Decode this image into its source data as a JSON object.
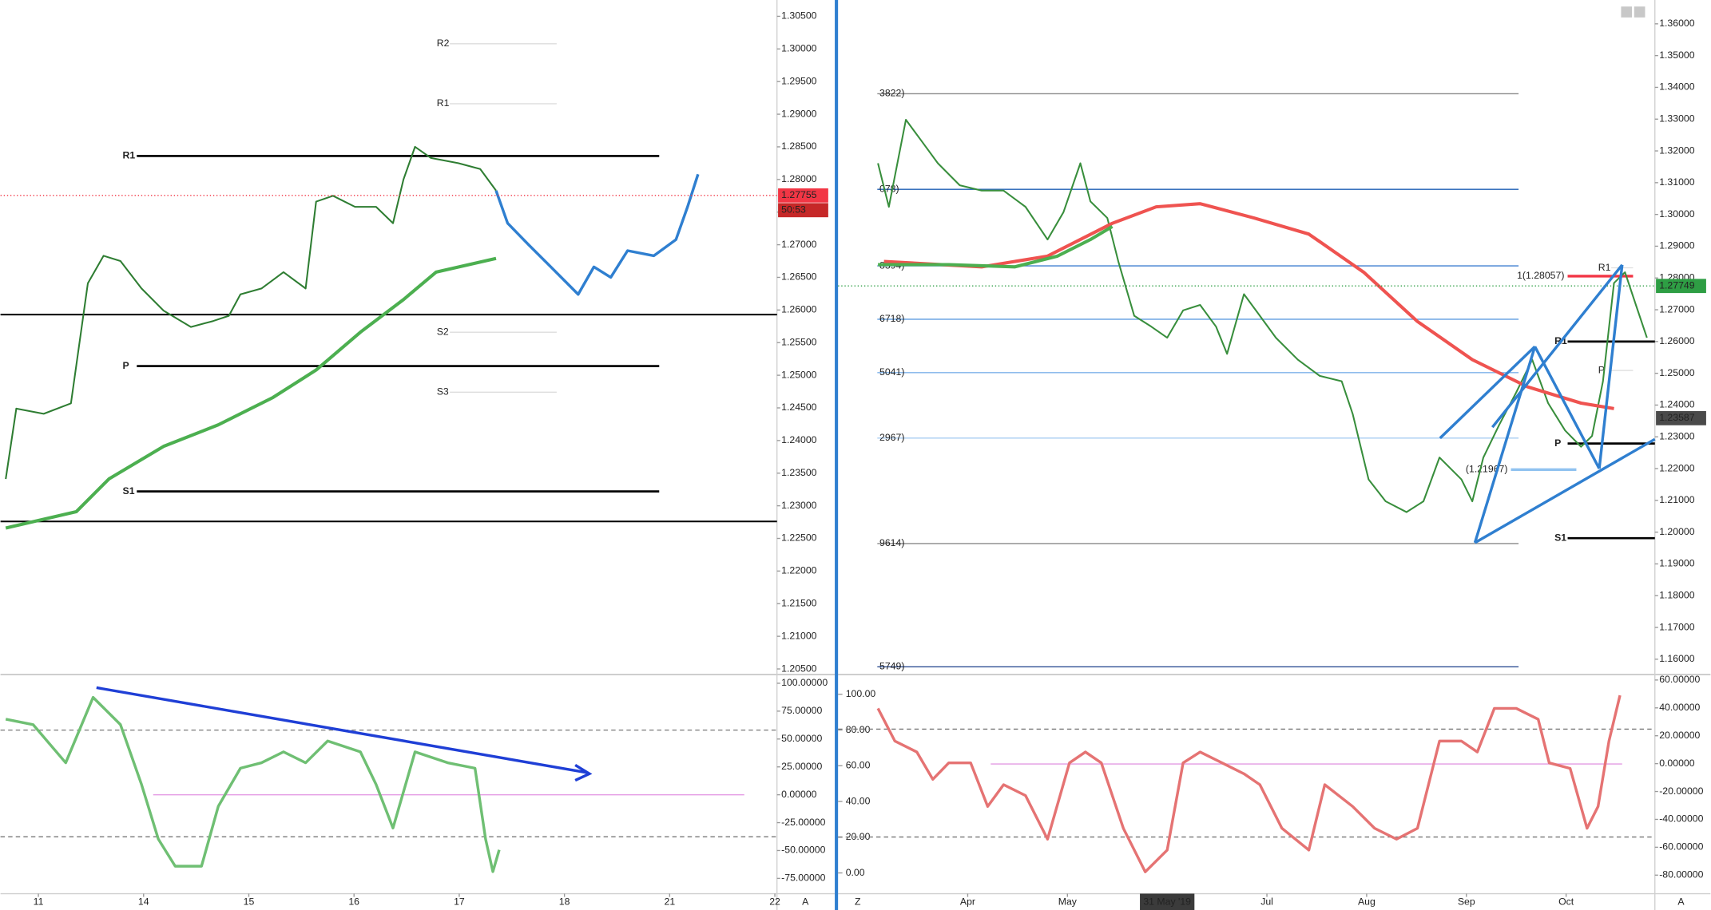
{
  "chart_data": [
    {
      "type": "line",
      "xlim": [
        -0.36,
        7.02
      ],
      "xticks": [
        {
          "value": 0,
          "label": "11"
        },
        {
          "value": 1,
          "label": "14"
        },
        {
          "value": 2,
          "label": "15"
        },
        {
          "value": 3,
          "label": "16"
        },
        {
          "value": 4,
          "label": "17"
        },
        {
          "value": 5,
          "label": "18"
        },
        {
          "value": 6,
          "label": "21"
        },
        {
          "value": 7,
          "label": "22"
        }
      ],
      "ylim": [
        1.2043,
        1.3075
      ],
      "yticks": [
        {
          "value": 1.205,
          "label": "1.20500"
        },
        {
          "value": 1.21,
          "label": "1.21000"
        },
        {
          "value": 1.215,
          "label": "1.21500"
        },
        {
          "value": 1.22,
          "label": "1.22000"
        },
        {
          "value": 1.225,
          "label": "1.22500"
        },
        {
          "value": 1.23,
          "label": "1.23000"
        },
        {
          "value": 1.235,
          "label": "1.23500"
        },
        {
          "value": 1.24,
          "label": "1.24000"
        },
        {
          "value": 1.245,
          "label": "1.24500"
        },
        {
          "value": 1.25,
          "label": "1.25000"
        },
        {
          "value": 1.255,
          "label": "1.25500"
        },
        {
          "value": 1.26,
          "label": "1.26000"
        },
        {
          "value": 1.265,
          "label": "1.26500"
        },
        {
          "value": 1.27,
          "label": "1.27000"
        },
        {
          "value": 1.275,
          "label": "1.27500"
        },
        {
          "value": 1.28,
          "label": "1.28000"
        },
        {
          "value": 1.285,
          "label": "1.28500"
        },
        {
          "value": 1.29,
          "label": "1.29000"
        },
        {
          "value": 1.295,
          "label": "1.29500"
        },
        {
          "value": 1.3,
          "label": "1.30000"
        },
        {
          "value": 1.305,
          "label": "1.30500"
        }
      ],
      "series": [
        {
          "color": "#2e7d32",
          "width": 1.5,
          "x": [
            -0.31,
            -0.21,
            0.05,
            0.31,
            0.47,
            0.62,
            0.78,
            0.98,
            1.19,
            1.45,
            1.66,
            1.81,
            1.92,
            2.12,
            2.33,
            2.54,
            2.64,
            2.8,
            3.01,
            3.21,
            3.37,
            3.47,
            3.58,
            3.73,
            3.99,
            4.2,
            4.35
          ],
          "values": [
            1.2341,
            1.2449,
            1.2441,
            1.2457,
            1.2641,
            1.2683,
            1.2675,
            1.2633,
            1.2599,
            1.2574,
            1.2583,
            1.2591,
            1.2624,
            1.2633,
            1.2658,
            1.2633,
            1.2766,
            1.2775,
            1.2758,
            1.2758,
            1.2733,
            1.28,
            1.285,
            1.2833,
            1.2825,
            1.2816,
            1.2783
          ]
        },
        {
          "color": "#2f7fd0",
          "width": 2.5,
          "x": [
            4.35,
            4.46,
            4.66,
            4.87,
            5.13,
            5.28,
            5.44,
            5.6,
            5.85,
            6.06,
            6.17,
            6.27
          ],
          "values": [
            1.2783,
            1.2733,
            1.27,
            1.2666,
            1.2624,
            1.2666,
            1.265,
            1.2691,
            1.2683,
            1.2708,
            1.2758,
            1.2808
          ]
        },
        {
          "color": "#4caf50",
          "width": 3,
          "x": [
            -0.31,
            0.36,
            0.67,
            1.19,
            1.71,
            2.23,
            2.64,
            3.06,
            3.47,
            3.78,
            4.35
          ],
          "values": [
            1.2266,
            1.2291,
            1.2341,
            1.2391,
            1.2424,
            1.2466,
            1.2508,
            1.2566,
            1.2616,
            1.2658,
            1.2679
          ]
        }
      ],
      "levels": [
        {
          "value": 1.2836,
          "label": "R1"
        },
        {
          "value": 1.2514,
          "label": "P"
        },
        {
          "value": 1.2322,
          "label": "S1"
        },
        {
          "value": 1.2593
        },
        {
          "value": 1.2276
        }
      ],
      "faint_levels": [
        {
          "value": 1.3008,
          "label": "R2"
        },
        {
          "value": 1.2916,
          "label": "R1"
        },
        {
          "value": 1.2566,
          "label": "S2"
        },
        {
          "value": 1.2474,
          "label": "S3"
        }
      ],
      "price_labels": [
        {
          "value": 1.27755,
          "label": "1.27755",
          "color": "#f23645"
        }
      ],
      "countdown": "50:53"
    },
    {
      "type": "line",
      "xlim": [
        -0.36,
        7.02
      ],
      "ylim": [
        -88.7,
        106.8
      ],
      "yticks": [
        {
          "value": 100,
          "label": "100.00000"
        },
        {
          "value": 75,
          "label": "75.00000"
        },
        {
          "value": 50,
          "label": "50.00000"
        },
        {
          "value": 25,
          "label": "25.00000"
        },
        {
          "value": 0,
          "label": "0.00000"
        },
        {
          "value": -25,
          "label": "-25.00000"
        },
        {
          "value": -50,
          "label": "-50.00000"
        },
        {
          "value": -75,
          "label": "-75.00000"
        }
      ],
      "series": [
        {
          "color": "#6fbf73",
          "width": 2.5,
          "x": [
            -0.31,
            -0.05,
            0.26,
            0.52,
            0.78,
            0.98,
            1.14,
            1.3,
            1.55,
            1.71,
            1.92,
            2.12,
            2.33,
            2.54,
            2.75,
            3.06,
            3.21,
            3.37,
            3.58,
            3.89,
            4.15,
            4.25,
            4.32,
            4.38
          ],
          "values": [
            67.8,
            62.9,
            28.7,
            87.3,
            62.9,
            9.2,
            -39.7,
            -64.1,
            -64.1,
            -10.4,
            23.8,
            28.7,
            38.5,
            28.7,
            48.2,
            38.5,
            9.2,
            -29.9,
            38.5,
            28.7,
            23.8,
            -39.7,
            -69,
            -49.4
          ]
        }
      ],
      "dashed_levels": [
        58,
        -37.7
      ],
      "mid_level": 0
    },
    {
      "type": "line",
      "xlim": [
        -1.3,
        6.89
      ],
      "xticks": [
        {
          "value": 0,
          "label": "Apr"
        },
        {
          "value": 1,
          "label": "May"
        },
        {
          "value": 3,
          "label": "Jul"
        },
        {
          "value": 4,
          "label": "Aug"
        },
        {
          "value": 5,
          "label": "Sep"
        },
        {
          "value": 6,
          "label": "Oct"
        }
      ],
      "crosshair_x": {
        "value": 2,
        "label": "31 May '19"
      },
      "ylim": [
        1.1555,
        1.3675
      ],
      "yticks": [
        {
          "value": 1.16,
          "label": "1.16000"
        },
        {
          "value": 1.17,
          "label": "1.17000"
        },
        {
          "value": 1.18,
          "label": "1.18000"
        },
        {
          "value": 1.19,
          "label": "1.19000"
        },
        {
          "value": 1.2,
          "label": "1.20000"
        },
        {
          "value": 1.21,
          "label": "1.21000"
        },
        {
          "value": 1.22,
          "label": "1.22000"
        },
        {
          "value": 1.23,
          "label": "1.23000"
        },
        {
          "value": 1.24,
          "label": "1.24000"
        },
        {
          "value": 1.25,
          "label": "1.25000"
        },
        {
          "value": 1.26,
          "label": "1.26000"
        },
        {
          "value": 1.27,
          "label": "1.27000"
        },
        {
          "value": 1.28,
          "label": "1.28000"
        },
        {
          "value": 1.29,
          "label": "1.29000"
        },
        {
          "value": 1.3,
          "label": "1.30000"
        },
        {
          "value": 1.31,
          "label": "1.31000"
        },
        {
          "value": 1.32,
          "label": "1.32000"
        },
        {
          "value": 1.33,
          "label": "1.33000"
        },
        {
          "value": 1.34,
          "label": "1.34000"
        },
        {
          "value": 1.35,
          "label": "1.35000"
        },
        {
          "value": 1.36,
          "label": "1.36000"
        }
      ],
      "series": [
        {
          "color": "#388e3c",
          "width": 1.5,
          "x": [
            -0.9,
            -0.79,
            -0.62,
            -0.46,
            -0.3,
            -0.08,
            0.14,
            0.36,
            0.58,
            0.8,
            0.96,
            1.13,
            1.23,
            1.4,
            1.51,
            1.67,
            1.84,
            2,
            2.16,
            2.33,
            2.49,
            2.6,
            2.77,
            2.93,
            3.09,
            3.31,
            3.53,
            3.75,
            3.86,
            4.02,
            4.19,
            4.4,
            4.57,
            4.73,
            4.95,
            5.06,
            5.17,
            5.33,
            5.5,
            5.66,
            5.82,
            5.99,
            6.15,
            6.26,
            6.37,
            6.48,
            6.59,
            6.7,
            6.81
          ],
          "values": [
            1.3161,
            1.3024,
            1.3298,
            1.323,
            1.3161,
            1.3092,
            1.3075,
            1.3075,
            1.3024,
            1.2921,
            1.3007,
            1.3161,
            1.3041,
            1.2989,
            1.2852,
            1.2681,
            1.2647,
            1.2612,
            1.2698,
            1.2715,
            1.2647,
            1.2561,
            1.2749,
            1.2681,
            1.2612,
            1.2543,
            1.2492,
            1.2475,
            1.2372,
            1.2166,
            1.2097,
            1.2063,
            1.2097,
            1.2235,
            1.2166,
            1.2097,
            1.2235,
            1.2338,
            1.244,
            1.2543,
            1.2406,
            1.232,
            1.2269,
            1.2303,
            1.2475,
            1.2784,
            1.2818,
            1.2715,
            1.2612
          ]
        },
        {
          "color": "#ef5350",
          "width": 3,
          "x": [
            -0.84,
            0.14,
            0.8,
            1.45,
            1.89,
            2.33,
            2.87,
            3.42,
            3.97,
            4.51,
            5.06,
            5.61,
            6.15,
            6.48
          ],
          "values": [
            1.2852,
            1.2835,
            1.2869,
            1.2972,
            1.3024,
            1.3034,
            1.2989,
            1.2938,
            1.2818,
            1.2663,
            1.2543,
            1.2458,
            1.2406,
            1.2389
          ]
        },
        {
          "color": "#4caf50",
          "width": 3,
          "x": [
            -0.9,
            -0.19,
            0.47,
            0.9,
            1.23,
            1.45
          ],
          "values": [
            1.2842,
            1.2842,
            1.2835,
            1.2869,
            1.2921,
            1.2962
          ]
        }
      ],
      "fib_levels": [
        {
          "value": 1.338,
          "label": "3822)",
          "color": "#8a8a8a"
        },
        {
          "value": 1.3079,
          "label": "078)",
          "color": "#1e5fb4"
        },
        {
          "value": 1.2838,
          "label": "8394)",
          "color": "#3d7fd0"
        },
        {
          "value": 1.267,
          "label": "6718)",
          "color": "#5a9be0"
        },
        {
          "value": 1.2502,
          "label": "5041)",
          "color": "#7fb3ea"
        },
        {
          "value": 1.2296,
          "label": "2967)",
          "color": "#a8cdf2"
        },
        {
          "value": 1.1964,
          "label": "9614)",
          "color": "#8a8a8a"
        },
        {
          "value": 1.1576,
          "label": "5749)",
          "color": "#1a3f8a"
        }
      ],
      "marked_levels": [
        {
          "value": 1.28057,
          "label": "1(1.28057)",
          "color": "#f23645"
        },
        {
          "value": 1.21967,
          "label": "(1.21967)",
          "color": "#90c2f0"
        }
      ],
      "pivots": [
        {
          "value": 1.26,
          "label": "R1"
        },
        {
          "value": 1.2279,
          "label": "P"
        },
        {
          "value": 1.1981,
          "label": "S1"
        }
      ],
      "faint_pivots": [
        {
          "value": 1.2832,
          "label": "R1"
        },
        {
          "value": 1.2509,
          "label": "P"
        }
      ],
      "price_labels": [
        {
          "value": 1.27749,
          "label": "1.27749",
          "color": "#2e9e44"
        },
        {
          "value": 1.23587,
          "label": "1.23587",
          "color": "#4a4a4a"
        }
      ]
    },
    {
      "type": "line",
      "xlim": [
        -1.3,
        6.89
      ],
      "ylim": [
        -11.6,
        110.4
      ],
      "yticks": [
        {
          "value": 100,
          "label": "100.00"
        },
        {
          "value": 80,
          "label": "80.00"
        },
        {
          "value": 60,
          "label": "60.00"
        },
        {
          "value": 40,
          "label": "40.00"
        },
        {
          "value": 20,
          "label": "20.00"
        },
        {
          "value": 0,
          "label": "0.00"
        }
      ],
      "y2lim": [
        -93.3,
        63.1
      ],
      "y2ticks": [
        {
          "value": 60,
          "label": "60.00000"
        },
        {
          "value": 40,
          "label": "40.00000"
        },
        {
          "value": 20,
          "label": "20.00000"
        },
        {
          "value": 0,
          "label": "0.00000"
        },
        {
          "value": -20,
          "label": "-20.00000"
        },
        {
          "value": -40,
          "label": "-40.00000"
        },
        {
          "value": -60,
          "label": "-60.00000"
        },
        {
          "value": -80,
          "label": "-80.00000"
        }
      ],
      "series": [
        {
          "color": "#e57373",
          "width": 2.5,
          "x": [
            -0.9,
            -0.73,
            -0.51,
            -0.35,
            -0.19,
            0.03,
            0.2,
            0.36,
            0.58,
            0.8,
            1.02,
            1.18,
            1.34,
            1.56,
            1.78,
            2,
            2.16,
            2.33,
            2.55,
            2.77,
            2.93,
            3.15,
            3.42,
            3.58,
            3.86,
            4.08,
            4.3,
            4.51,
            4.73,
            4.95,
            5.11,
            5.28,
            5.5,
            5.72,
            5.83,
            6.04,
            6.21,
            6.32,
            6.43,
            6.54
          ],
          "values": [
            92.1,
            73.8,
            67.7,
            52.4,
            61.6,
            61.6,
            37.2,
            49.4,
            43.3,
            18.9,
            61.6,
            67.7,
            61.6,
            25,
            0.6,
            12.8,
            61.6,
            67.7,
            61.6,
            55.5,
            49.4,
            25,
            12.8,
            49.4,
            37.2,
            25,
            18.9,
            25,
            73.8,
            73.8,
            67.7,
            92.1,
            92.1,
            86,
            61.6,
            58.5,
            25,
            37.2,
            73.8,
            99.4
          ]
        }
      ],
      "dashed_levels": [
        80.5,
        20.1
      ],
      "mid_level": 61
    }
  ],
  "ui": {
    "auto_left": "A",
    "zoom": "Z",
    "auto_right": "A"
  }
}
